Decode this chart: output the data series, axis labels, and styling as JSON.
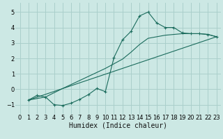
{
  "xlabel": "Humidex (Indice chaleur)",
  "bg_color": "#cce8e4",
  "grid_color": "#aacfcb",
  "line_color": "#1a6b5c",
  "xlim": [
    -0.5,
    23.5
  ],
  "ylim": [
    -1.6,
    5.6
  ],
  "xticks": [
    0,
    1,
    2,
    3,
    4,
    5,
    6,
    7,
    8,
    9,
    10,
    11,
    12,
    13,
    14,
    15,
    16,
    17,
    18,
    19,
    20,
    21,
    22,
    23
  ],
  "yticks": [
    -1,
    0,
    1,
    2,
    3,
    4,
    5
  ],
  "curve1_x": [
    1,
    2,
    3,
    4,
    5,
    6,
    7,
    8,
    9,
    10,
    11,
    12,
    13,
    14,
    15,
    16,
    17,
    18,
    19,
    20,
    21,
    22,
    23
  ],
  "curve1_y": [
    -0.7,
    -0.4,
    -0.5,
    -1.0,
    -1.05,
    -0.9,
    -0.65,
    -0.35,
    0.05,
    -0.15,
    2.05,
    3.2,
    3.75,
    4.75,
    5.0,
    4.3,
    4.0,
    4.0,
    3.65,
    3.6,
    3.6,
    3.55,
    3.4
  ],
  "curve2_x": [
    1,
    3,
    5,
    10,
    11,
    12,
    13,
    14,
    15,
    16,
    17,
    18,
    19,
    20,
    21,
    22,
    23
  ],
  "curve2_y": [
    -0.7,
    -0.5,
    0.05,
    1.35,
    1.65,
    1.95,
    2.4,
    2.9,
    3.3,
    3.4,
    3.5,
    3.55,
    3.6,
    3.6,
    3.6,
    3.55,
    3.4
  ],
  "curve3_x": [
    1,
    23
  ],
  "curve3_y": [
    -0.7,
    3.4
  ],
  "xlabel_fontsize": 7,
  "tick_fontsize": 6
}
